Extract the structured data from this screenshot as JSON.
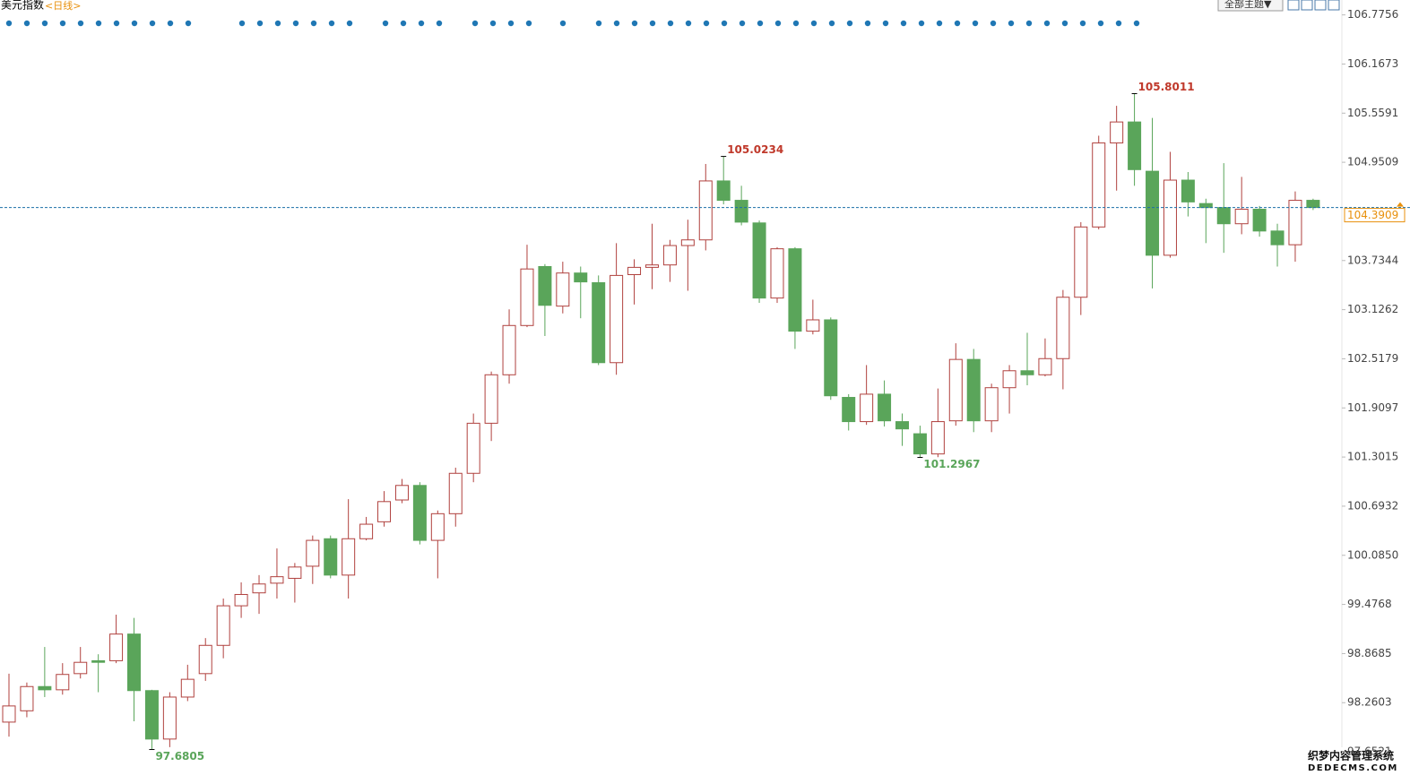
{
  "chart_data": {
    "type": "candlestick",
    "title": "美元指数",
    "subtitle": "<日线>",
    "open": [
      98.02,
      98.16,
      98.46,
      98.42,
      98.62,
      98.78,
      98.78,
      99.11,
      98.41,
      97.81,
      98.33,
      98.62,
      98.97,
      99.46,
      99.62,
      99.74,
      99.8,
      99.95,
      100.29,
      99.84,
      100.29,
      100.5,
      100.77,
      100.95,
      100.27,
      100.6,
      101.1,
      101.72,
      102.32,
      102.93,
      103.66,
      103.17,
      103.58,
      103.46,
      102.47,
      103.56,
      103.65,
      103.68,
      103.92,
      103.99,
      104.72,
      104.48,
      104.2,
      103.27,
      103.88,
      102.86,
      103.0,
      102.04,
      101.74,
      102.08,
      101.74,
      101.59,
      101.34,
      101.75,
      102.51,
      101.75,
      102.16,
      102.37,
      102.32,
      102.52,
      103.28,
      104.15,
      105.19,
      105.45,
      104.84,
      103.8,
      104.73,
      104.44,
      104.39,
      104.19,
      104.37,
      104.1,
      103.93,
      104.48
    ],
    "high": [
      98.62,
      98.51,
      98.95,
      98.75,
      98.95,
      98.86,
      99.35,
      99.31,
      98.42,
      98.39,
      98.73,
      99.06,
      99.55,
      99.75,
      99.84,
      100.17,
      99.99,
      100.33,
      100.33,
      100.78,
      100.56,
      100.88,
      101.03,
      100.99,
      100.64,
      101.17,
      101.84,
      102.36,
      103.13,
      103.93,
      103.69,
      103.72,
      103.66,
      103.55,
      103.95,
      103.75,
      104.19,
      103.99,
      104.24,
      104.93,
      105.0234,
      104.66,
      104.23,
      103.9,
      103.9,
      103.25,
      103.03,
      102.08,
      102.44,
      102.25,
      101.84,
      101.69,
      102.15,
      102.71,
      102.64,
      102.21,
      102.44,
      102.84,
      102.77,
      103.37,
      104.21,
      105.28,
      105.65,
      105.8011,
      105.5,
      105.08,
      104.83,
      104.5,
      104.94,
      104.77,
      104.41,
      104.19,
      104.59,
      104.5
    ],
    "low": [
      97.84,
      98.08,
      98.33,
      98.36,
      98.56,
      98.39,
      98.75,
      98.03,
      97.6805,
      97.71,
      98.28,
      98.53,
      98.81,
      99.31,
      99.36,
      99.55,
      99.5,
      99.73,
      99.8,
      99.55,
      100.27,
      100.44,
      100.73,
      100.22,
      99.8,
      100.44,
      100.99,
      101.5,
      102.21,
      102.91,
      102.8,
      103.08,
      103.02,
      102.44,
      102.32,
      103.19,
      103.38,
      103.47,
      103.36,
      103.86,
      104.43,
      104.17,
      103.21,
      103.21,
      102.64,
      102.82,
      102.01,
      101.63,
      101.7,
      101.68,
      101.44,
      101.2967,
      101.3,
      101.69,
      101.61,
      101.61,
      101.84,
      102.19,
      102.3,
      102.14,
      103.06,
      104.12,
      104.6,
      104.66,
      103.39,
      103.77,
      104.28,
      103.95,
      103.83,
      104.06,
      104.03,
      103.66,
      103.72,
      104.36
    ],
    "close": [
      98.22,
      98.46,
      98.42,
      98.61,
      98.76,
      98.76,
      99.11,
      98.41,
      97.81,
      98.33,
      98.55,
      98.97,
      99.46,
      99.6,
      99.73,
      99.82,
      99.94,
      100.27,
      99.84,
      100.29,
      100.47,
      100.75,
      100.95,
      100.27,
      100.6,
      101.1,
      101.72,
      102.32,
      102.93,
      103.63,
      103.18,
      103.58,
      103.47,
      102.47,
      103.55,
      103.65,
      103.68,
      103.92,
      103.99,
      104.72,
      104.48,
      104.21,
      103.27,
      103.88,
      102.86,
      103.0,
      102.06,
      101.74,
      102.08,
      101.75,
      101.65,
      101.34,
      101.74,
      102.51,
      101.75,
      102.16,
      102.37,
      102.32,
      102.52,
      103.28,
      104.15,
      105.19,
      105.45,
      104.86,
      103.8,
      104.73,
      104.46,
      104.39,
      104.19,
      104.37,
      104.1,
      103.93,
      104.48,
      104.3909
    ],
    "up_color": "#b0413e",
    "down_color": "#5aa55a",
    "high_label_color": "#c0392b",
    "low_label_color": "#5aa55a",
    "last_price_color": "#e8900c",
    "last_line_color": "#1a6fa8",
    "ylim": [
      97.42,
      106.96
    ],
    "yticks": [
      106.7756,
      106.1673,
      105.5591,
      104.9509,
      103.7344,
      103.1262,
      102.5179,
      101.9097,
      101.3015,
      100.6932,
      {
        "value": 100.085,
        "label": "100.0850"
      },
      99.4768,
      98.8685,
      98.2603,
      97.6521
    ]
  },
  "toolbar": {
    "theme_button": "全部主题▼"
  },
  "watermark": {
    "line1": "织梦内容管理系统",
    "line2": "DEDECMS.COM"
  }
}
